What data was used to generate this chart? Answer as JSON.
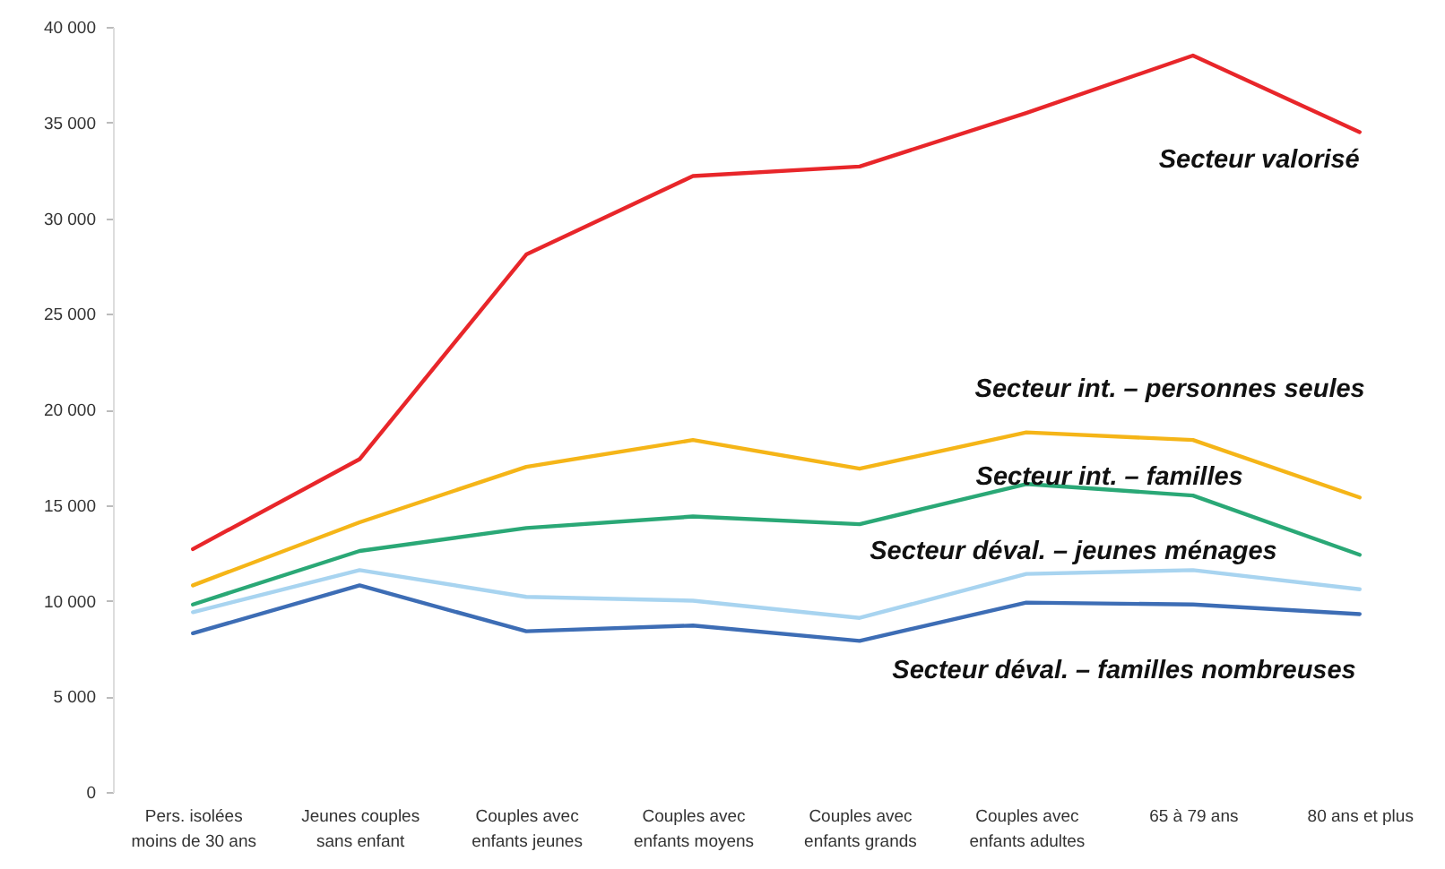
{
  "chart_data": {
    "type": "line",
    "categories": [
      "Pers. isolées moins de 30 ans",
      "Jeunes couples sans enfant",
      "Couples avec enfants jeunes",
      "Couples avec enfants moyens",
      "Couples avec enfants grands",
      "Couples avec enfants adultes",
      "65 à 79 ans",
      "80 ans et plus"
    ],
    "series": [
      {
        "name": "Secteur valorisé",
        "color": "#e8262a",
        "values": [
          12700,
          17400,
          28100,
          32200,
          32700,
          35500,
          38500,
          34500
        ]
      },
      {
        "name": "Secteur int. – personnes seules",
        "color": "#f5b518",
        "values": [
          10800,
          14100,
          17000,
          18400,
          16900,
          18800,
          18400,
          15400
        ]
      },
      {
        "name": "Secteur int. – familles",
        "color": "#2aa876",
        "values": [
          9800,
          12600,
          13800,
          14400,
          14000,
          16100,
          15500,
          12400
        ]
      },
      {
        "name": "Secteur déval. – jeunes ménages",
        "color": "#a8d4f0",
        "values": [
          9400,
          11600,
          10200,
          10000,
          9100,
          11400,
          11600,
          10600
        ]
      },
      {
        "name": "Secteur déval. – familles nombreuses",
        "color": "#3d6db5",
        "values": [
          8300,
          10800,
          8400,
          8700,
          7900,
          9900,
          9800,
          9300
        ]
      }
    ],
    "ylim": [
      0,
      40000
    ],
    "yticks": [
      {
        "value": 0,
        "label": "0"
      },
      {
        "value": 5000,
        "label": "5 000"
      },
      {
        "value": 10000,
        "label": "10 000"
      },
      {
        "value": 15000,
        "label": "15 000"
      },
      {
        "value": 20000,
        "label": "20 000"
      },
      {
        "value": 25000,
        "label": "25 000"
      },
      {
        "value": 30000,
        "label": "30 000"
      },
      {
        "value": 35000,
        "label": "35 000"
      },
      {
        "value": 40000,
        "label": "40 000"
      }
    ],
    "line_style": "solid"
  }
}
